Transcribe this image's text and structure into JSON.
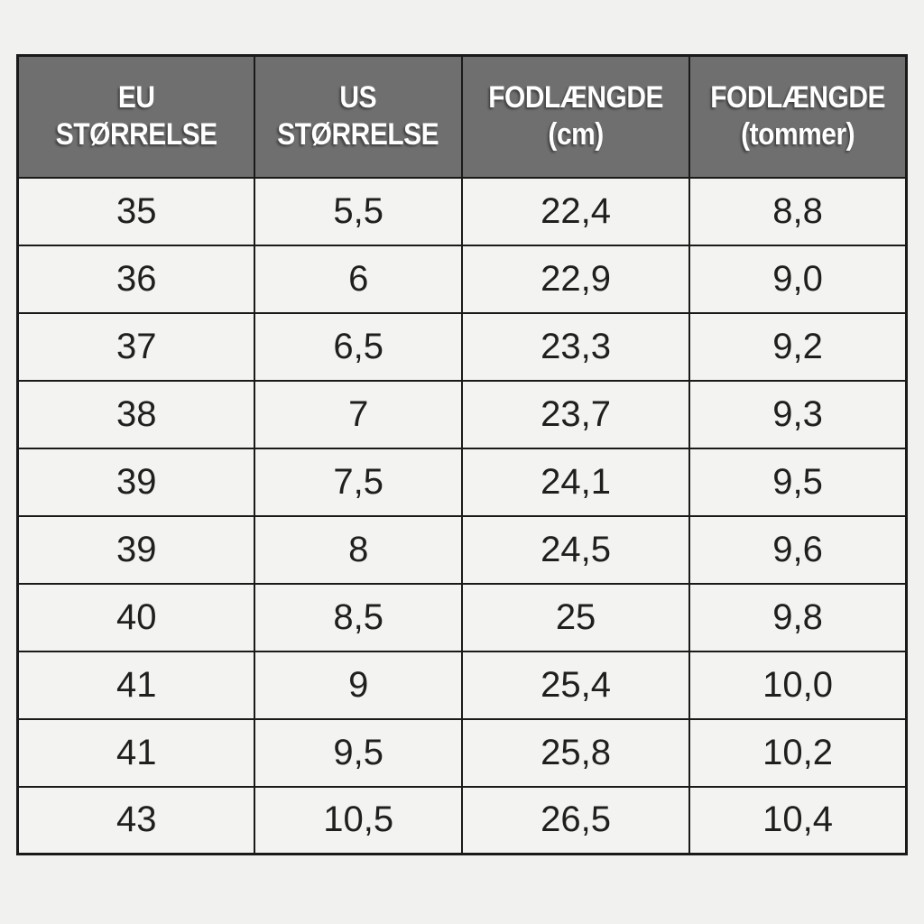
{
  "table": {
    "headers": [
      {
        "label": "EU STØRRELSE"
      },
      {
        "label": "US STØRRELSE"
      },
      {
        "label": "FODLÆNGDE\n(cm)"
      },
      {
        "label": "FODLÆNGDE\n(tommer)"
      }
    ],
    "rows": [
      [
        "35",
        "5,5",
        "22,4",
        "8,8"
      ],
      [
        "36",
        "6",
        "22,9",
        "9,0"
      ],
      [
        "37",
        "6,5",
        "23,3",
        "9,2"
      ],
      [
        "38",
        "7",
        "23,7",
        "9,3"
      ],
      [
        "39",
        "7,5",
        "24,1",
        "9,5"
      ],
      [
        "39",
        "8",
        "24,5",
        "9,6"
      ],
      [
        "40",
        "8,5",
        "25",
        "9,8"
      ],
      [
        "41",
        "9",
        "25,4",
        "10,0"
      ],
      [
        "41",
        "9,5",
        "25,8",
        "10,2"
      ],
      [
        "43",
        "10,5",
        "26,5",
        "10,4"
      ]
    ]
  },
  "colors": {
    "page_bg": "#f1f1ef",
    "cell_bg": "#f3f3f1",
    "header_bg": "#6f6f6f",
    "header_text": "#ffffff",
    "border": "#1a1a1a"
  },
  "chart_data": {
    "type": "table",
    "title": "",
    "columns": [
      "EU STØRRELSE",
      "US STØRRELSE",
      "FODLÆNGDE (cm)",
      "FODLÆNGDE (tommer)"
    ],
    "rows": [
      [
        "35",
        "5,5",
        "22,4",
        "8,8"
      ],
      [
        "36",
        "6",
        "22,9",
        "9,0"
      ],
      [
        "37",
        "6,5",
        "23,3",
        "9,2"
      ],
      [
        "38",
        "7",
        "23,7",
        "9,3"
      ],
      [
        "39",
        "7,5",
        "24,1",
        "9,5"
      ],
      [
        "39",
        "8",
        "24,5",
        "9,6"
      ],
      [
        "40",
        "8,5",
        "25",
        "9,8"
      ],
      [
        "41",
        "9",
        "25,4",
        "10,0"
      ],
      [
        "41",
        "9,5",
        "25,8",
        "10,2"
      ],
      [
        "43",
        "10,5",
        "26,5",
        "10,4"
      ]
    ],
    "notes": "Danish shoe size conversion chart; decimal commas as displayed; header row dark gray with white text"
  }
}
